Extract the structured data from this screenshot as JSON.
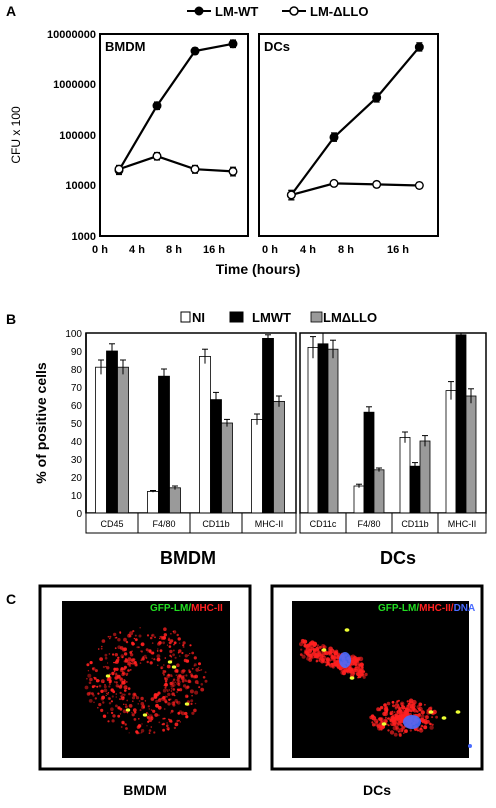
{
  "panel_letters": {
    "a": "A",
    "b": "B",
    "c": "C"
  },
  "colors": {
    "wt": "#000000",
    "dllo": "#ffffff",
    "ni": "#ffffff",
    "lmwt": "#000000",
    "lmdllo": "#9a9a9a",
    "gfp": "#22dd22",
    "mhc": "#ff2020",
    "dna": "#4a6cff",
    "micro_bg": "#000000"
  },
  "chart_data": [
    {
      "type": "line",
      "panel": "A",
      "subplots": [
        {
          "title": "BMDM",
          "series": [
            {
              "name": "LM-WT",
              "marker": "filled-circle",
              "x": [
                2,
                6,
                10,
                14
              ],
              "y": [
                20000,
                380000,
                4600000,
                6400000
              ],
              "err_hi": [
                24000,
                450000,
                5300000,
                7600000
              ],
              "err_lo": [
                16500,
                320000,
                4000000,
                5400000
              ]
            },
            {
              "name": "LM-ΔLLO",
              "marker": "open-circle",
              "x": [
                2,
                6,
                10,
                14
              ],
              "y": [
                21000,
                38000,
                21000,
                19000
              ],
              "err_hi": [
                25000,
                45000,
                25000,
                23000
              ],
              "err_lo": [
                17500,
                32000,
                17500,
                15500
              ]
            }
          ]
        },
        {
          "title": "DCs",
          "series": [
            {
              "name": "LM-WT",
              "marker": "filled-circle",
              "x": [
                2,
                6,
                10,
                14
              ],
              "y": [
                6500,
                90000,
                550000,
                5500000
              ],
              "err_hi": [
                8000,
                110000,
                680000,
                6700000
              ],
              "err_lo": [
                5200,
                75000,
                450000,
                4600000
              ]
            },
            {
              "name": "LM-ΔLLO",
              "marker": "open-circle",
              "x": [
                2,
                6,
                10,
                14
              ],
              "y": [
                6500,
                11000,
                10500,
                10000
              ],
              "err_hi": [
                8000,
                12500,
                12000,
                11500
              ],
              "err_lo": [
                5200,
                9700,
                9200,
                8800
              ]
            }
          ]
        }
      ],
      "x_ticks": [
        "0 h",
        "4 h",
        "8 h",
        "16 h"
      ],
      "x_tick_values": [
        0,
        4,
        8,
        12
      ],
      "xlim": [
        -1,
        16
      ],
      "y_scale": "log",
      "ylim": [
        1000,
        10000000
      ],
      "y_ticks": [
        "1000",
        "10000",
        "100000",
        "1000000",
        "10000000"
      ],
      "xlabel": "Time (hours)",
      "ylabel": "CFU x 100",
      "legend_position": "top-center"
    },
    {
      "type": "bar",
      "panel": "B",
      "ylabel": "% of positive cells",
      "ylim": [
        0,
        100
      ],
      "y_ticks": [
        "0",
        "10",
        "20",
        "30",
        "40",
        "50",
        "60",
        "70",
        "80",
        "90",
        "100"
      ],
      "legend_position": "top-center",
      "series_names": [
        "NI",
        "LMWT",
        "LMΔLLO"
      ],
      "subplots": [
        {
          "title": "BMDM",
          "categories": [
            "CD45",
            "F4/80",
            "CD11b",
            "MHC-II"
          ],
          "series": [
            {
              "name": "NI",
              "values": [
                81,
                12,
                87,
                52
              ],
              "errors": [
                4,
                0.5,
                4,
                3
              ]
            },
            {
              "name": "LMWT",
              "values": [
                90,
                76,
                63,
                97
              ],
              "errors": [
                4,
                4,
                4,
                2
              ]
            },
            {
              "name": "LMΔLLO",
              "values": [
                81,
                14,
                50,
                62
              ],
              "errors": [
                4,
                1,
                2,
                3
              ]
            }
          ]
        },
        {
          "title": "DCs",
          "categories": [
            "CD11c",
            "F4/80",
            "CD11b",
            "MHC-II"
          ],
          "series": [
            {
              "name": "NI",
              "values": [
                92,
                15,
                42,
                68
              ],
              "errors": [
                6,
                1,
                3,
                5
              ]
            },
            {
              "name": "LMWT",
              "values": [
                94,
                56,
                26,
                99
              ],
              "errors": [
                6,
                3,
                2,
                1
              ]
            },
            {
              "name": "LMΔLLO",
              "values": [
                91,
                24,
                40,
                65
              ],
              "errors": [
                5,
                1,
                3,
                4
              ]
            }
          ]
        }
      ]
    }
  ],
  "panel_c": {
    "bmdm": {
      "overlay_green": "GFP-LM/",
      "overlay_red": "MHC-II",
      "caption": "BMDM"
    },
    "dcs": {
      "overlay_green": "GFP-LM/",
      "overlay_red": "MHC-II/",
      "overlay_blue": "DNA",
      "caption": "DCs"
    }
  }
}
